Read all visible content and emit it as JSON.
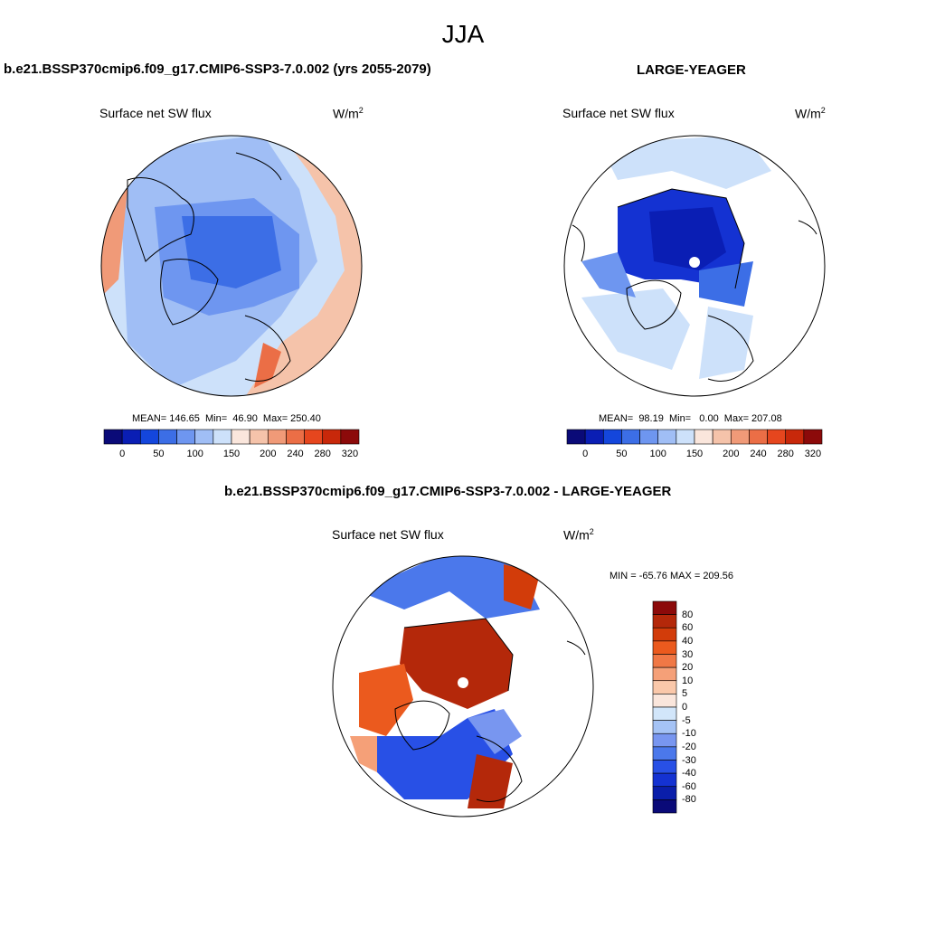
{
  "title": "JJA",
  "panels": {
    "left": {
      "header": "b.e21.BSSP370cmip6.f09_g17.CMIP6-SSP3-7.0.002 (yrs 2055-2079)",
      "label": "Surface net SW flux",
      "unit_base": "W/m",
      "unit_exp": "2",
      "stats": "MEAN= 146.65  Min=  46.90  Max= 250.40"
    },
    "right": {
      "header": "LARGE-YEAGER",
      "label": "Surface net SW flux",
      "unit_base": "W/m",
      "unit_exp": "2",
      "stats": "MEAN=  98.19  Min=   0.00  Max= 207.08"
    },
    "diff": {
      "header": "b.e21.BSSP370cmip6.f09_g17.CMIP6-SSP3-7.0.002 - LARGE-YEAGER",
      "label": "Surface net SW flux",
      "unit_base": "W/m",
      "unit_exp": "2",
      "minmax": "MIN = -65.76 MAX = 209.56"
    }
  },
  "colorbar_abs": {
    "colors": [
      "#0a0a78",
      "#0a1eb4",
      "#1446dc",
      "#3c6ee6",
      "#6e96f0",
      "#a0bef5",
      "#cde1fa",
      "#fae6dc",
      "#f5c3aa",
      "#f09a78",
      "#eb6e46",
      "#e6461e",
      "#c8280a",
      "#8c0a0a"
    ],
    "labels": [
      "0",
      "50",
      "100",
      "150",
      "200",
      "240",
      "280",
      "320"
    ]
  },
  "colorbar_diff": {
    "colors": [
      "#8c0a0a",
      "#b4280a",
      "#d23c0a",
      "#eb5a1e",
      "#f07846",
      "#f5a078",
      "#fac8aa",
      "#fae6dc",
      "#d2e6fa",
      "#a5c3f5",
      "#7896f0",
      "#4b78eb",
      "#2850e6",
      "#1432d2",
      "#0a1eaa",
      "#0a0a78"
    ],
    "labels": [
      "80",
      "60",
      "40",
      "30",
      "20",
      "10",
      "5",
      "0",
      "-5",
      "-10",
      "-20",
      "-30",
      "-40",
      "-60",
      "-80"
    ]
  }
}
